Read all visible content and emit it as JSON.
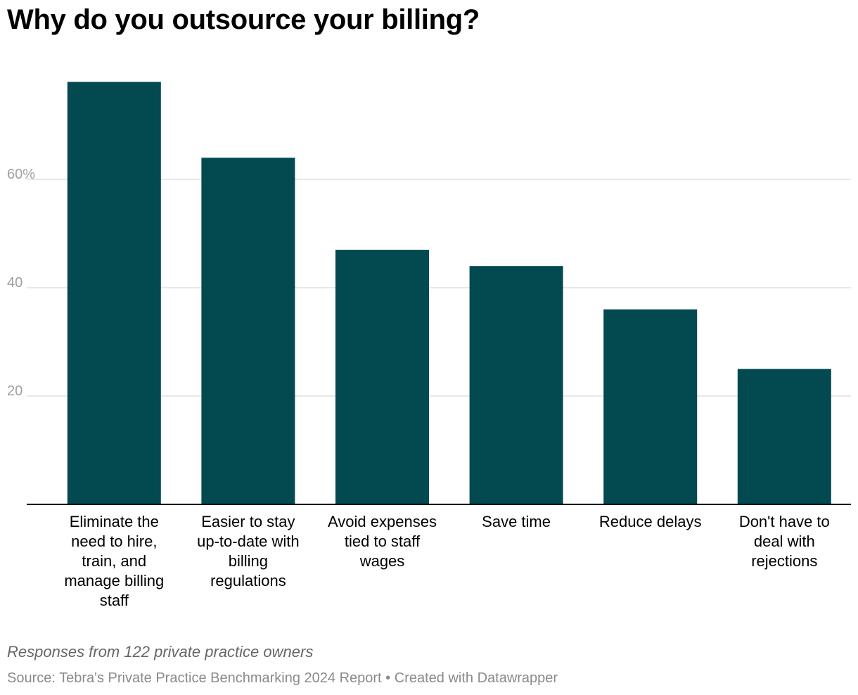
{
  "title": "Why do you outsource your billing?",
  "notes": "Responses from 122 private practice owners",
  "footer": {
    "source": "Source: Tebra's Private Practice Benchmarking 2024 Report",
    "separator": " • ",
    "credit": "Created with Datawrapper"
  },
  "colors": {
    "bar": "#024950",
    "grid": "#e0e0e0",
    "baseline": "#000000",
    "tick_text": "#a0a0a0"
  },
  "chart_data": {
    "type": "bar",
    "title": "Why do you outsource your billing?",
    "categories": [
      [
        "Eliminate the",
        "need to hire,",
        "train, and",
        "manage billing",
        "staff"
      ],
      [
        "Easier to stay",
        "up-to-date with",
        "billing",
        "regulations"
      ],
      [
        "Avoid expenses",
        "tied to staff",
        "wages"
      ],
      [
        "Save time"
      ],
      [
        "Reduce delays"
      ],
      [
        "Don't have to",
        "deal with",
        "rejections"
      ]
    ],
    "values": [
      78,
      64,
      47,
      44,
      36,
      25
    ],
    "ylim": [
      0,
      80
    ],
    "yticks": [
      {
        "value": 20,
        "label": "20"
      },
      {
        "value": 40,
        "label": "40"
      },
      {
        "value": 60,
        "label": "60%"
      }
    ],
    "grid": true,
    "xlabel": "",
    "ylabel": ""
  }
}
